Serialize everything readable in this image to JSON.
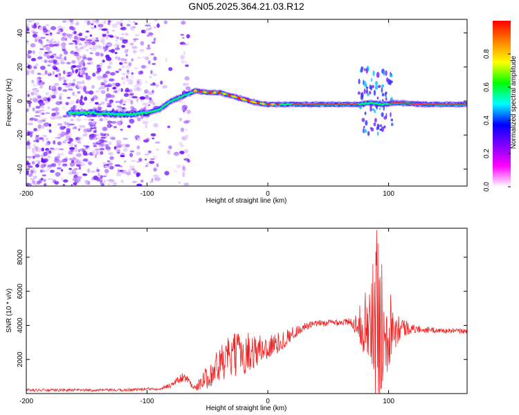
{
  "title": "GN05.2025.364.21.03.R12",
  "colors": {
    "snr_line": "#ee2222",
    "axis": "#000000",
    "background": "#ffffff"
  },
  "chart_data": [
    {
      "type": "heatmap",
      "name": "spectrogram",
      "xlabel": "Height of straight line (km)",
      "ylabel": "Frequency (Hz)",
      "xlim": [
        -200,
        165
      ],
      "ylim": [
        -50,
        48
      ],
      "xticks": [
        -200,
        -100,
        0,
        100
      ],
      "xtick_labels": [
        "-200",
        "-100",
        "0",
        "100"
      ],
      "yticks": [
        -40,
        -20,
        0,
        20,
        40
      ],
      "ytick_labels": [
        "-40",
        "-20",
        "0",
        "20",
        "40"
      ],
      "colorbar": {
        "label": "Normalized spectral amplitude",
        "range": [
          0,
          1
        ],
        "ticks": [
          0.0,
          0.2,
          0.4,
          0.6,
          0.8
        ],
        "tick_labels": [
          "0.0",
          "0.2",
          "0.4",
          "0.6",
          "0.8"
        ],
        "colormap": [
          "#ffffff",
          "#ff00ff",
          "#8000ff",
          "#0000ff",
          "#00ffff",
          "#00ff00",
          "#ffff00",
          "#ff8000",
          "#ff0000"
        ]
      },
      "ridge": {
        "description": "dominant frequency track vs height",
        "x": [
          -160,
          -140,
          -120,
          -100,
          -90,
          -80,
          -70,
          -60,
          -50,
          -40,
          -30,
          -20,
          -10,
          0,
          20,
          40,
          60,
          75,
          85,
          95,
          105,
          130,
          165
        ],
        "y": [
          -7,
          -7,
          -8,
          -7,
          -5,
          0,
          3,
          6,
          5,
          5,
          3,
          1,
          -1,
          -2,
          -2,
          -2,
          -2,
          -2,
          -1,
          -2,
          -1,
          -2,
          -2
        ]
      }
    },
    {
      "type": "line",
      "name": "snr",
      "xlabel": "Height of straight line (km)",
      "ylabel": "SNR (10 * v/v)",
      "xlim": [
        -200,
        165
      ],
      "ylim": [
        0,
        9700
      ],
      "xticks": [
        -200,
        -100,
        0,
        100
      ],
      "xtick_labels": [
        "-200",
        "-100",
        "0",
        "100"
      ],
      "yticks": [
        2000,
        4000,
        6000,
        8000
      ],
      "ytick_labels": [
        "2000",
        "4000",
        "6000",
        "8000"
      ],
      "envelope": {
        "x": [
          -200,
          -120,
          -90,
          -80,
          -70,
          -65,
          -60,
          -50,
          -40,
          -30,
          -20,
          -10,
          0,
          10,
          20,
          30,
          40,
          50,
          60,
          70,
          75,
          80,
          85,
          88,
          92,
          95,
          100,
          105,
          110,
          120,
          140,
          165
        ],
        "mean": [
          200,
          200,
          300,
          500,
          1000,
          700,
          300,
          1000,
          1700,
          2200,
          2400,
          2500,
          2700,
          3000,
          3500,
          3900,
          4100,
          4150,
          4200,
          4150,
          4100,
          4000,
          4000,
          4000,
          4000,
          4000,
          4000,
          4000,
          3900,
          3800,
          3700,
          3650
        ],
        "spread": [
          80,
          80,
          100,
          150,
          300,
          250,
          150,
          700,
          1100,
          1300,
          1300,
          1000,
          800,
          600,
          400,
          250,
          200,
          200,
          200,
          300,
          900,
          1800,
          3000,
          4500,
          5000,
          3500,
          2500,
          1400,
          700,
          250,
          150,
          150
        ]
      },
      "peak": {
        "x": 90,
        "y": 9600
      }
    }
  ]
}
